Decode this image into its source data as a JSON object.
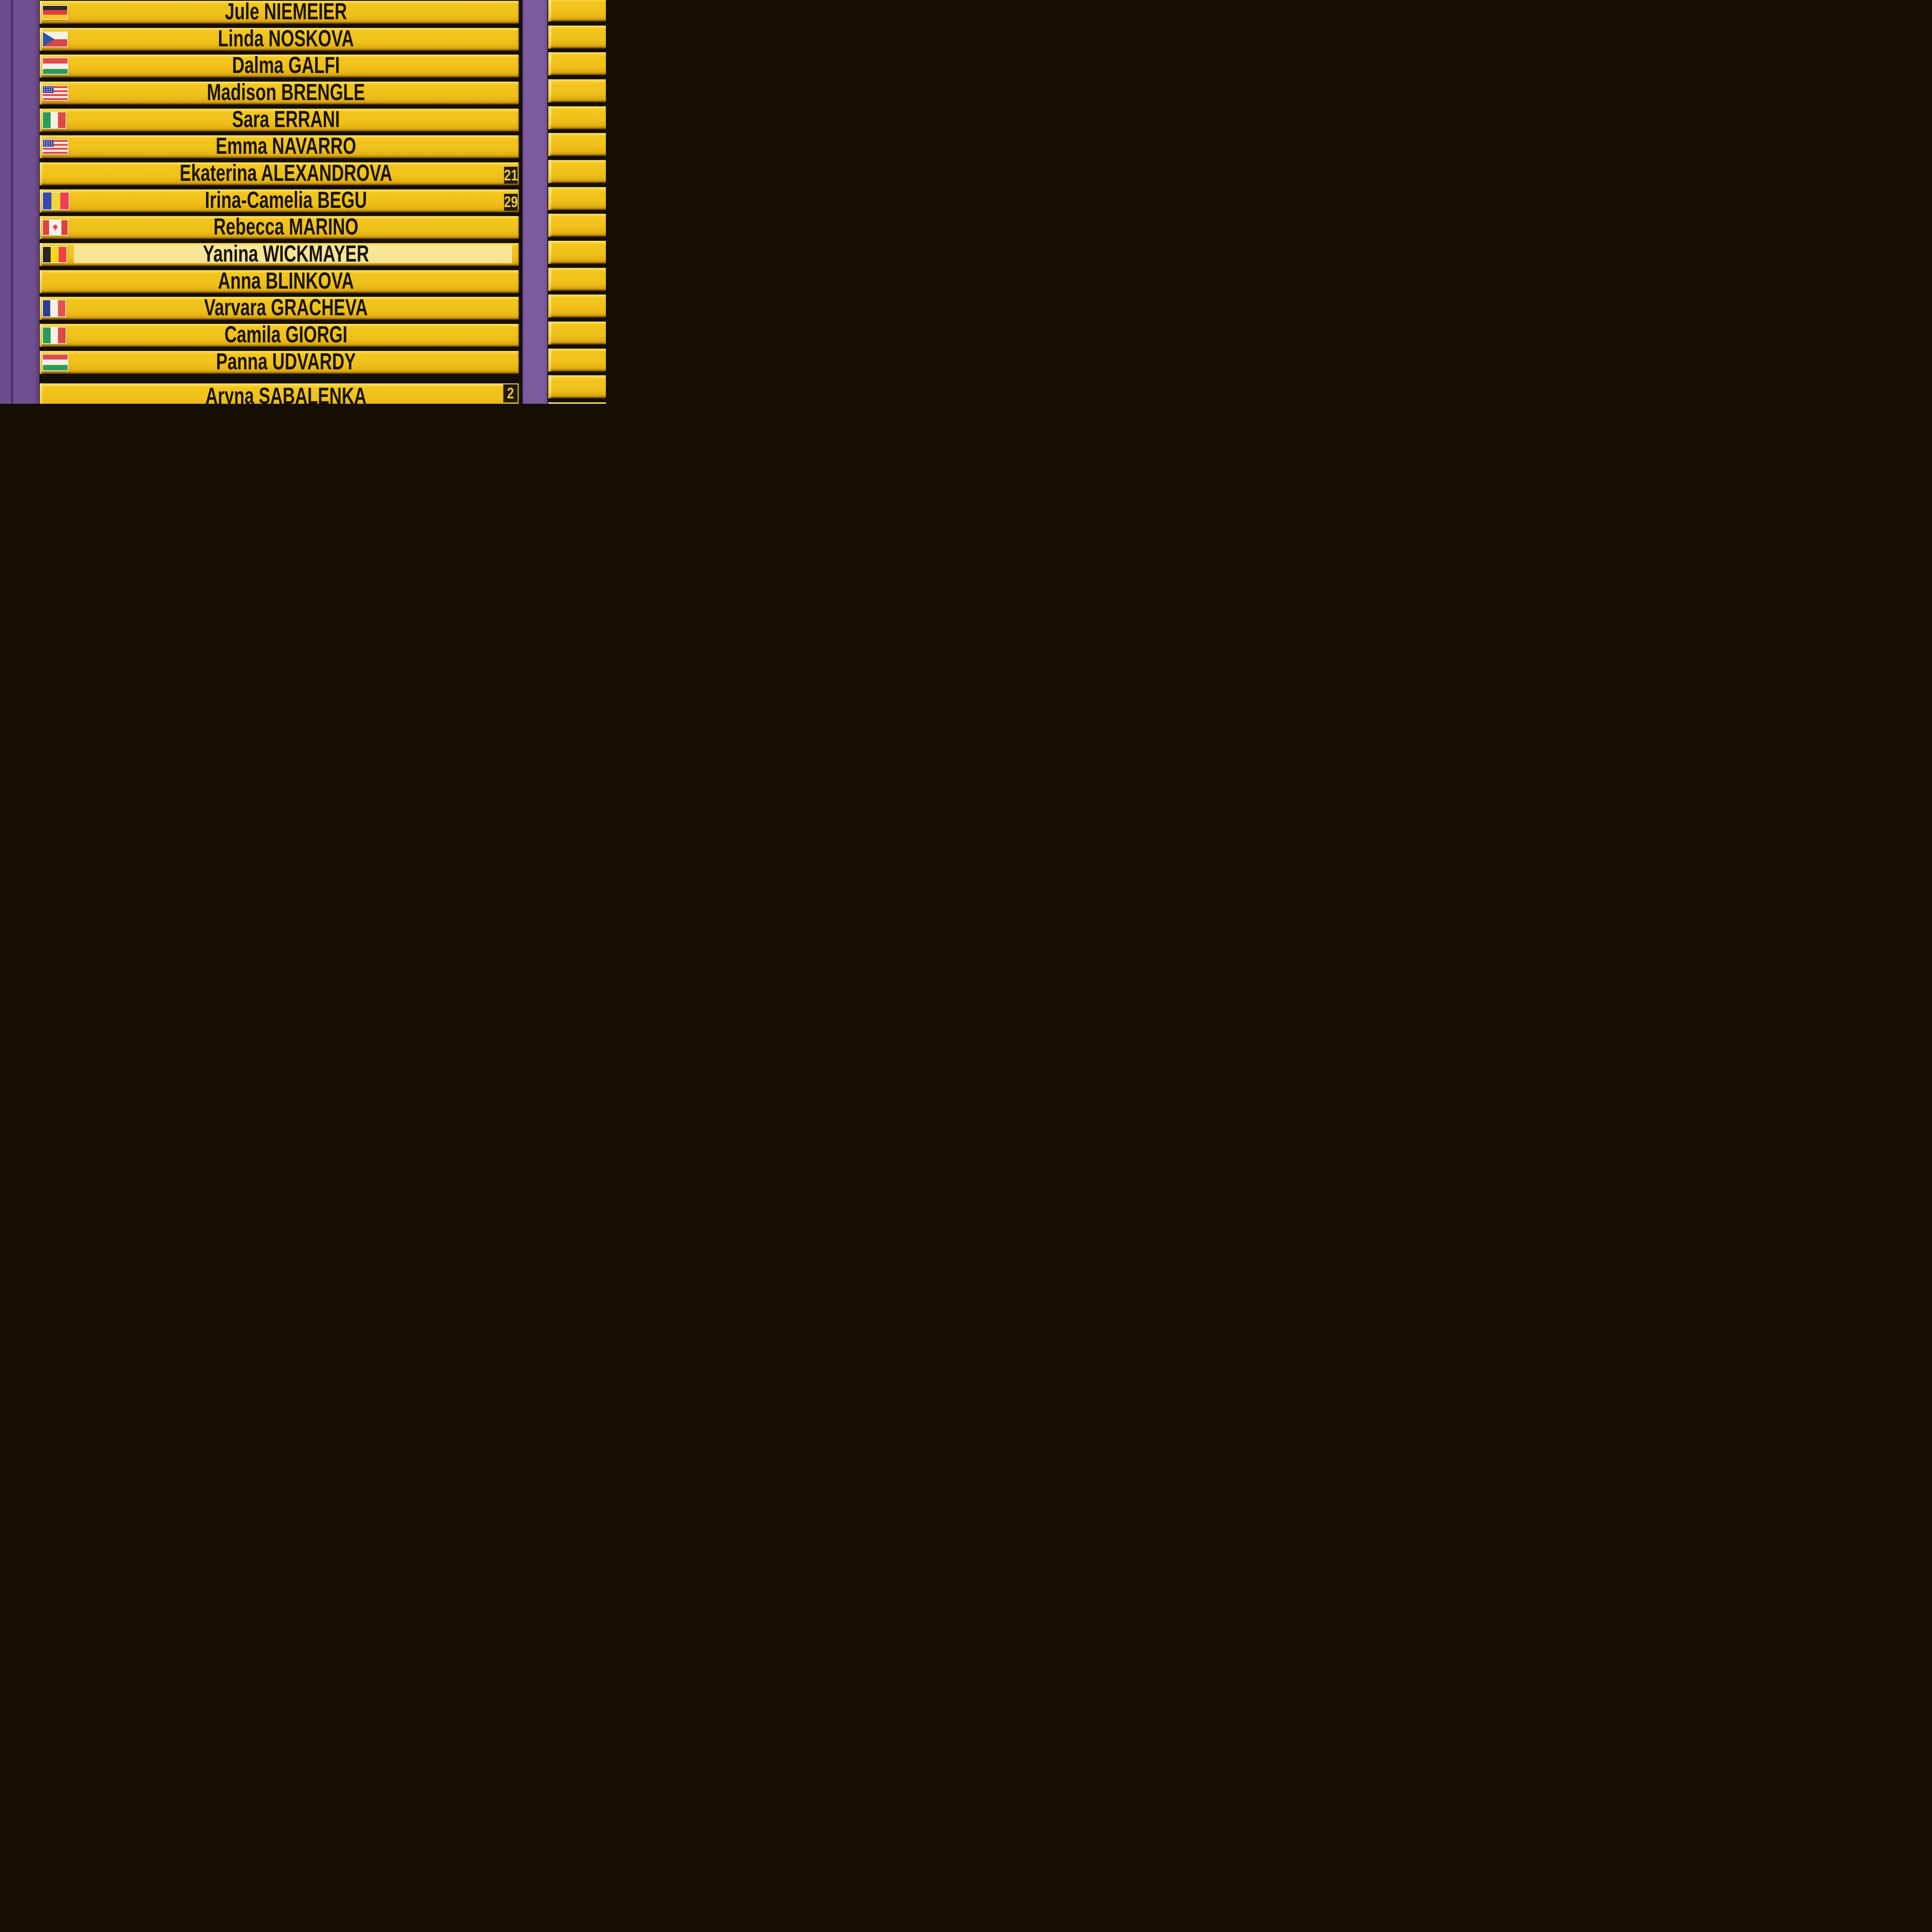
{
  "colors": {
    "purple_left": "#6e4e8e",
    "purple_seam": "#412f5f",
    "purple_column": "#7b5a9d",
    "slat_yellow": "#f0c31c",
    "slat_highlight": "#ffe787",
    "slat_shadow": "#b98405",
    "gap_dark": "#150e04",
    "name_text": "#191409",
    "seed_bg": "#201a10",
    "seed_text": "#f0c63a",
    "label_strip": "#f8f0ba"
  },
  "rows": [
    {
      "name": "Jule NIEMEIER",
      "country": "germany",
      "seed": ""
    },
    {
      "name": "Linda NOSKOVA",
      "country": "czech-republic",
      "seed": ""
    },
    {
      "name": "Dalma GALFI",
      "country": "hungary",
      "seed": ""
    },
    {
      "name": "Madison BRENGLE",
      "country": "usa",
      "seed": ""
    },
    {
      "name": "Sara ERRANI",
      "country": "italy",
      "seed": ""
    },
    {
      "name": "Emma NAVARRO",
      "country": "usa",
      "seed": ""
    },
    {
      "name": "Ekaterina ALEXANDROVA",
      "country": "",
      "seed": "21"
    },
    {
      "name": "Irina-Camelia BEGU",
      "country": "romania",
      "seed": "29"
    },
    {
      "name": "Rebecca MARINO",
      "country": "canada",
      "seed": ""
    },
    {
      "name": "Yanina WICKMAYER",
      "country": "belgium",
      "seed": "",
      "label_strip": true
    },
    {
      "name": "Anna BLINKOVA",
      "country": "",
      "seed": ""
    },
    {
      "name": "Varvara GRACHEVA",
      "country": "france",
      "seed": ""
    },
    {
      "name": "Camila GIORGI",
      "country": "italy",
      "seed": ""
    },
    {
      "name": "Panna UDVARDY",
      "country": "hungary",
      "seed": ""
    },
    {
      "name": "Aryna SABALENKA",
      "country": "",
      "seed": "2",
      "last_row": true
    }
  ],
  "flags": {
    "germany": {
      "label": "germany-flag",
      "type": "h",
      "colors": [
        "#2e2a26",
        "#e23f3c",
        "#f1c41e"
      ],
      "w": 63,
      "h": 34
    },
    "czech-republic": {
      "label": "czech-republic-flag",
      "type": "czech",
      "colors": [
        "#f4f1e8",
        "#dc4348",
        "#2d55a5"
      ],
      "w": 63,
      "h": 37
    },
    "hungary": {
      "label": "hungary-flag",
      "type": "h",
      "colors": [
        "#db4b52",
        "#f4f1e6",
        "#2e9a58"
      ],
      "w": 64,
      "h": 41
    },
    "usa": {
      "label": "usa-flag",
      "type": "usa",
      "colors": [
        "#3d429a",
        "#e04a44",
        "#f2efe7"
      ],
      "w": 64,
      "h": 36
    },
    "italy": {
      "label": "italy-flag",
      "type": "v",
      "colors": [
        "#2a9c58",
        "#f4f1e6",
        "#dc4a48"
      ],
      "w": 59,
      "h": 41
    },
    "romania": {
      "label": "romania-flag",
      "type": "v",
      "colors": [
        "#3a49ae",
        "#eed73c",
        "#ee3f55"
      ],
      "w": 67,
      "h": 44
    },
    "canada": {
      "label": "canada-flag",
      "type": "canada",
      "colors": [
        "#e2403c",
        "#f4f2ec"
      ],
      "w": 64,
      "h": 38
    },
    "belgium": {
      "label": "belgium-flag",
      "type": "v",
      "colors": [
        "#2a2622",
        "#f6d623",
        "#ef413d"
      ],
      "w": 61,
      "h": 40
    },
    "france": {
      "label": "france-flag",
      "type": "v",
      "colors": [
        "#2e3e8f",
        "#f4f1e6",
        "#e4504e"
      ],
      "w": 58,
      "h": 42
    }
  },
  "right_board": {
    "slat_count": 16
  }
}
